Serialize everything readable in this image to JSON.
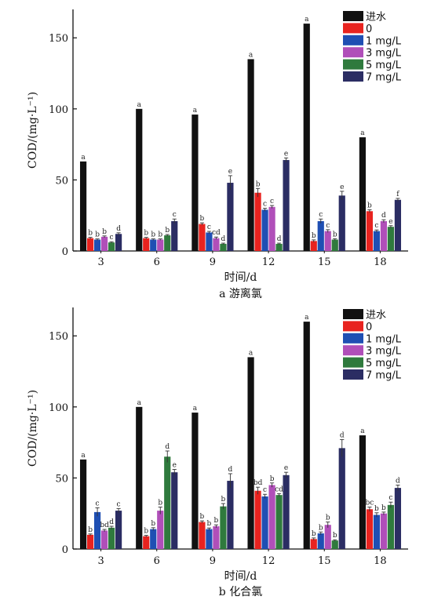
{
  "chart_data": [
    {
      "type": "bar",
      "title": "a 游离氯",
      "xlabel": "时间/d",
      "ylabel": "COD/(mg·L⁻¹)",
      "ylim": [
        0,
        170
      ],
      "yticks": [
        0,
        50,
        100,
        150
      ],
      "categories": [
        "3",
        "6",
        "9",
        "12",
        "15",
        "18"
      ],
      "legend": "top-right",
      "series": [
        {
          "name": "进水",
          "color": "#111111",
          "values": [
            63,
            100,
            96,
            135,
            160,
            80
          ],
          "err": [
            0,
            0,
            0,
            0,
            0,
            0
          ],
          "letters": [
            "a",
            "a",
            "a",
            "a",
            "a",
            "a"
          ]
        },
        {
          "name": "0",
          "color": "#e8231f",
          "values": [
            9,
            9,
            19,
            41,
            7,
            28
          ],
          "err": [
            0.6,
            0.6,
            0.8,
            3,
            0.8,
            1
          ],
          "letters": [
            "b",
            "b",
            "b",
            "b",
            "b",
            "b"
          ]
        },
        {
          "name": "1 mg/L",
          "color": "#1f4fb3",
          "values": [
            8,
            8,
            13,
            29,
            21,
            14
          ],
          "err": [
            0.5,
            0.5,
            0.8,
            1,
            1.5,
            0.8
          ],
          "letters": [
            "b",
            "b",
            "c",
            "c",
            "c",
            "c"
          ]
        },
        {
          "name": "3 mg/L",
          "color": "#b04fb9",
          "values": [
            10,
            8,
            9,
            31,
            14,
            21
          ],
          "err": [
            0.6,
            0.5,
            0.8,
            1,
            1,
            1
          ],
          "letters": [
            "b",
            "b",
            "cd",
            "c",
            "c",
            "d"
          ]
        },
        {
          "name": "5 mg/L",
          "color": "#2f7a3d",
          "values": [
            6,
            11,
            5,
            5,
            8,
            17
          ],
          "err": [
            0.5,
            0.6,
            0.5,
            0.5,
            0.6,
            0.8
          ],
          "letters": [
            "c",
            "b",
            "d",
            "d",
            "b",
            "e"
          ]
        },
        {
          "name": "7 mg/L",
          "color": "#2b2d63",
          "values": [
            12,
            21,
            48,
            64,
            39,
            36
          ],
          "err": [
            0.8,
            1.5,
            5,
            1.5,
            3,
            1
          ],
          "letters": [
            "d",
            "c",
            "e",
            "e",
            "e",
            "f"
          ]
        }
      ]
    },
    {
      "type": "bar",
      "title": "b 化合氯",
      "xlabel": "时间/d",
      "ylabel": "COD/(mg·L⁻¹)",
      "ylim": [
        0,
        170
      ],
      "yticks": [
        0,
        50,
        100,
        150
      ],
      "categories": [
        "3",
        "6",
        "9",
        "12",
        "15",
        "18"
      ],
      "legend": "top-right",
      "series": [
        {
          "name": "进水",
          "color": "#111111",
          "values": [
            63,
            100,
            96,
            135,
            160,
            80
          ],
          "err": [
            0,
            0,
            0,
            0,
            0,
            0
          ],
          "letters": [
            "a",
            "a",
            "a",
            "a",
            "a",
            "a"
          ]
        },
        {
          "name": "0",
          "color": "#e8231f",
          "values": [
            10,
            9,
            19,
            41,
            7,
            28
          ],
          "err": [
            0.6,
            0.6,
            0.8,
            2.5,
            0.8,
            1.5
          ],
          "letters": [
            "b",
            "b",
            "b",
            "bd",
            "b",
            "bc"
          ]
        },
        {
          "name": "1 mg/L",
          "color": "#1f4fb3",
          "values": [
            26,
            14,
            14,
            37,
            11,
            24
          ],
          "err": [
            3,
            1,
            0.8,
            1.5,
            1,
            1.5
          ],
          "letters": [
            "c",
            "b",
            "b",
            "c",
            "b",
            "b"
          ]
        },
        {
          "name": "3 mg/L",
          "color": "#b04fb9",
          "values": [
            13,
            27,
            16,
            45,
            17,
            25
          ],
          "err": [
            0.8,
            2.5,
            1,
            1.5,
            2,
            1
          ],
          "letters": [
            "bd",
            "b",
            "b",
            "b",
            "b",
            "b"
          ]
        },
        {
          "name": "5 mg/L",
          "color": "#2f7a3d",
          "values": [
            15,
            65,
            30,
            38,
            6,
            31
          ],
          "err": [
            1,
            4,
            2,
            1,
            0.5,
            2
          ],
          "letters": [
            "d",
            "d",
            "b",
            "cd",
            "b",
            "c"
          ]
        },
        {
          "name": "7 mg/L",
          "color": "#2b2d63",
          "values": [
            27,
            54,
            48,
            52,
            71,
            43
          ],
          "err": [
            1.5,
            2,
            5,
            2,
            6,
            2
          ],
          "letters": [
            "c",
            "e",
            "d",
            "e",
            "d",
            "d"
          ]
        }
      ]
    }
  ]
}
